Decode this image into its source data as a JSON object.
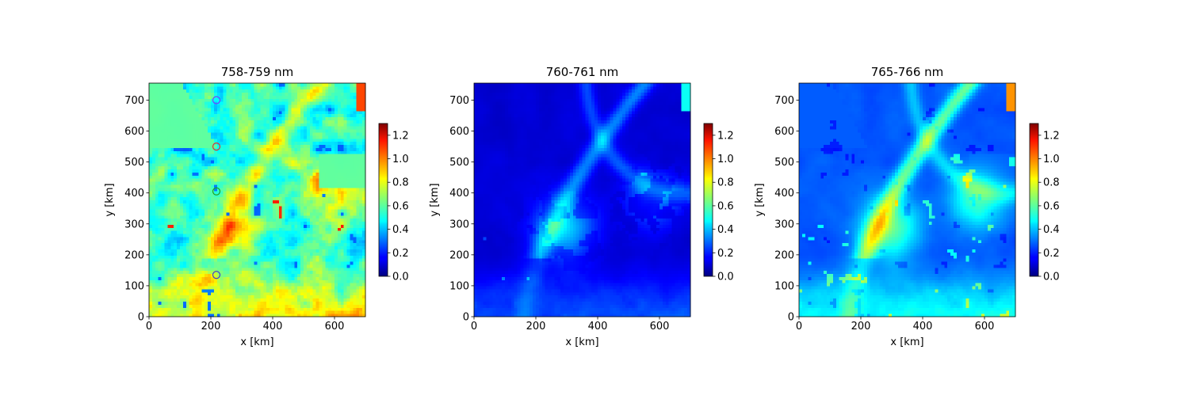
{
  "chart_data": [
    {
      "type": "heatmap",
      "title": "758-759 nm",
      "xlabel": "x [km]",
      "ylabel": "y [km]",
      "xlim": [
        0,
        700
      ],
      "ylim": [
        0,
        755
      ],
      "xticks": [
        0,
        200,
        400,
        600
      ],
      "yticks": [
        0,
        100,
        200,
        300,
        400,
        500,
        600,
        700
      ],
      "colormap": "jet",
      "colorbar": {
        "vmin": 0.0,
        "vmax": 1.3,
        "ticks": [
          "0.0",
          "0.2",
          "0.4",
          "0.6",
          "0.8",
          "1.0",
          "1.2"
        ]
      },
      "markers": [
        {
          "x": 218,
          "y": 700,
          "edge_color": "#7a3cff"
        },
        {
          "x": 218,
          "y": 550,
          "edge_color": "#e03030"
        },
        {
          "x": 218,
          "y": 405,
          "edge_color": "#20a020"
        },
        {
          "x": 218,
          "y": 135,
          "edge_color": "#3c3cd8"
        }
      ]
    },
    {
      "type": "heatmap",
      "title": "760-761 nm",
      "xlabel": "x [km]",
      "ylabel": "y [km]",
      "xlim": [
        0,
        700
      ],
      "ylim": [
        0,
        755
      ],
      "xticks": [
        0,
        200,
        400,
        600
      ],
      "yticks": [
        0,
        100,
        200,
        300,
        400,
        500,
        600,
        700
      ],
      "colormap": "jet",
      "colorbar": {
        "vmin": 0.0,
        "vmax": 1.3,
        "ticks": [
          "0.0",
          "0.2",
          "0.4",
          "0.6",
          "0.8",
          "1.0",
          "1.2"
        ]
      },
      "markers": []
    },
    {
      "type": "heatmap",
      "title": "765-766 nm",
      "xlabel": "x [km]",
      "ylabel": "y [km]",
      "xlim": [
        0,
        700
      ],
      "ylim": [
        0,
        755
      ],
      "xticks": [
        0,
        200,
        400,
        600
      ],
      "yticks": [
        0,
        100,
        200,
        300,
        400,
        500,
        600,
        700
      ],
      "colormap": "jet",
      "colorbar": {
        "vmin": 0.0,
        "vmax": 1.3,
        "ticks": [
          "0.0",
          "0.2",
          "0.4",
          "0.6",
          "0.8",
          "1.0",
          "1.2"
        ]
      },
      "markers": []
    }
  ]
}
